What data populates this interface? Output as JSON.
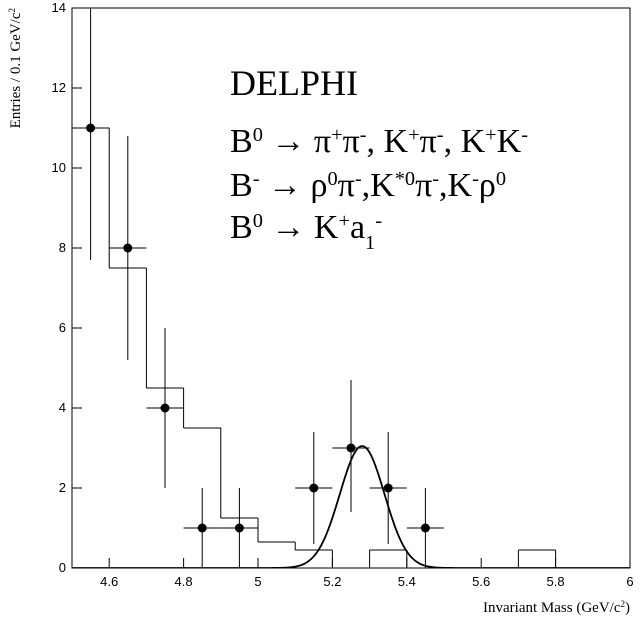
{
  "chart_data": {
    "type": "histogram",
    "xlabel": [
      [
        "Invariant Mass (GeV/c",
        "base"
      ],
      [
        "2",
        "sup"
      ],
      [
        ")",
        "base"
      ]
    ],
    "ylabel": [
      [
        "Entries / 0.1 GeV/c",
        "base"
      ],
      [
        "2",
        "sup"
      ]
    ],
    "annotations": [
      [
        [
          "DELPHI",
          "base"
        ]
      ],
      [
        [
          "B",
          "base"
        ],
        [
          "0",
          "sup"
        ],
        [
          " → π",
          "base"
        ],
        [
          "+",
          "sup"
        ],
        [
          "π",
          "base"
        ],
        [
          "-",
          "sup"
        ],
        [
          ", K",
          "base"
        ],
        [
          "+",
          "sup"
        ],
        [
          "π",
          "base"
        ],
        [
          "-",
          "sup"
        ],
        [
          ", K",
          "base"
        ],
        [
          "+",
          "sup"
        ],
        [
          "K",
          "base"
        ],
        [
          "-",
          "sup"
        ]
      ],
      [
        [
          "B",
          "base"
        ],
        [
          "-",
          "sup"
        ],
        [
          " → ρ",
          "base"
        ],
        [
          "0",
          "sup"
        ],
        [
          "π",
          "base"
        ],
        [
          "-",
          "sup"
        ],
        [
          ",K",
          "base"
        ],
        [
          "*0",
          "sup"
        ],
        [
          "π",
          "base"
        ],
        [
          "-",
          "sup"
        ],
        [
          ",K",
          "base"
        ],
        [
          "-",
          "sup"
        ],
        [
          "ρ",
          "base"
        ],
        [
          "0",
          "sup"
        ]
      ],
      [
        [
          "B",
          "base"
        ],
        [
          "0",
          "sup"
        ],
        [
          " → K",
          "base"
        ],
        [
          "+",
          "sup"
        ],
        [
          "a",
          "base"
        ],
        [
          "1",
          "sub"
        ],
        [
          "-",
          "sup"
        ]
      ]
    ],
    "bins": [
      4.5,
      4.6,
      4.7,
      4.8,
      4.9,
      5.0,
      5.1,
      5.2,
      5.3,
      5.4,
      5.5,
      5.6,
      5.7,
      5.8,
      6.0
    ],
    "counts": [
      11,
      7.5,
      4.5,
      3.5,
      1.25,
      0.65,
      0.45,
      0,
      0.45,
      0,
      0,
      0,
      0.45,
      0
    ],
    "points": {
      "x": [
        4.55,
        4.65,
        4.75,
        4.85,
        4.95,
        5.15,
        5.25,
        5.35,
        5.45
      ],
      "y": [
        11,
        8,
        4,
        1,
        1,
        2,
        3,
        2,
        1
      ],
      "xerr": [
        0.05,
        0.05,
        0.05,
        0.05,
        0.05,
        0.05,
        0.05,
        0.05,
        0.05
      ],
      "yerr_low": [
        3.3,
        2.8,
        2,
        1,
        1,
        1.4,
        1.6,
        1.4,
        1
      ],
      "yerr_high": [
        4.4,
        2.8,
        2,
        1,
        1,
        1.4,
        1.7,
        1.4,
        1
      ]
    },
    "fit": {
      "mean": 5.28,
      "sigma": 0.06,
      "amplitude": 3.05
    },
    "xlim": [
      4.5,
      6
    ],
    "ylim": [
      0,
      14
    ],
    "xticks": [
      4.6,
      4.8,
      5,
      5.2,
      5.4,
      5.6,
      5.8,
      6
    ],
    "yticks": [
      0,
      2,
      4,
      6,
      8,
      10,
      12,
      14
    ]
  }
}
